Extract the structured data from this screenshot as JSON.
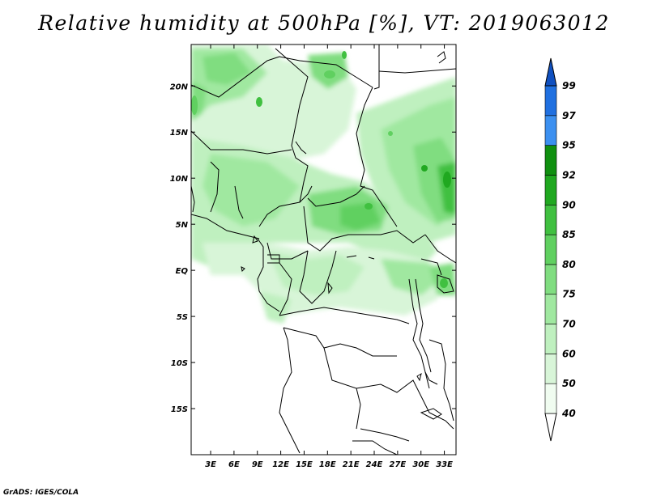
{
  "title": "Relative humidity at 500hPa [%], VT: 2019063012",
  "credit": "GrADS: IGES/COLA",
  "map": {
    "lon_labels": [
      "3E",
      "6E",
      "9E",
      "12E",
      "15E",
      "18E",
      "21E",
      "24E",
      "27E",
      "30E",
      "33E"
    ],
    "lon_values": [
      3,
      6,
      9,
      12,
      15,
      18,
      21,
      24,
      27,
      30,
      33
    ],
    "lat_labels": [
      "20N",
      "15N",
      "10N",
      "5N",
      "EQ",
      "5S",
      "10S",
      "15S"
    ],
    "lat_values": [
      20,
      15,
      10,
      5,
      0,
      -5,
      -10,
      -15
    ],
    "lon_range": [
      0.5,
      34.5
    ],
    "lat_range": [
      -20,
      24.5
    ]
  },
  "colorbar": {
    "levels": [
      40,
      50,
      60,
      70,
      75,
      80,
      85,
      90,
      92,
      95,
      97,
      99
    ],
    "labels": [
      "40",
      "50",
      "60",
      "70",
      "75",
      "80",
      "85",
      "90",
      "92",
      "95",
      "97",
      "99"
    ],
    "colors": [
      "#f0fcf0",
      "#d8f5d8",
      "#bff0bf",
      "#a0e8a0",
      "#80dd80",
      "#60d060",
      "#40c040",
      "#20a820",
      "#109010",
      "#3c90f0",
      "#2070e0",
      "#1050c0"
    ]
  }
}
